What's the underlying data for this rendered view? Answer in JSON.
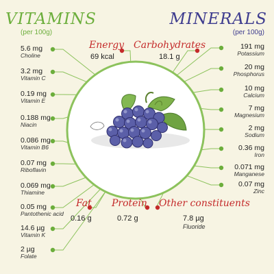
{
  "vitamins": {
    "title": "VITAMINS",
    "per": "(per 100g)",
    "items": [
      {
        "value": "5.6 mg",
        "name": "Choline"
      },
      {
        "value": "3.2 mg",
        "name": "Vitamin C"
      },
      {
        "value": "0.19 mg",
        "name": "Vitamin E"
      },
      {
        "value": "0.188 mg",
        "name": "Niacin"
      },
      {
        "value": "0.086 mg",
        "name": "Vitamin B6"
      },
      {
        "value": "0.07 mg",
        "name": "Riboflavin"
      },
      {
        "value": "0.069 mg",
        "name": "Thiamine"
      },
      {
        "value": "0.05 mg",
        "name": "Pantothenic acid"
      },
      {
        "value": "14.6 µg",
        "name": "Vitamin K"
      },
      {
        "value": "2 µg",
        "name": "Folate"
      }
    ]
  },
  "minerals": {
    "title": "MINERALS",
    "per": "(per 100g)",
    "items": [
      {
        "value": "191 mg",
        "name": "Potassium"
      },
      {
        "value": "20 mg",
        "name": "Phosphorus"
      },
      {
        "value": "10 mg",
        "name": "Calcium"
      },
      {
        "value": "7 mg",
        "name": "Magnesium"
      },
      {
        "value": "2 mg",
        "name": "Sodium"
      },
      {
        "value": "0.36 mg",
        "name": "Iron"
      },
      {
        "value": "0.071 mg",
        "name": "Manganese"
      },
      {
        "value": "0.07 mg",
        "name": "Zinc"
      }
    ]
  },
  "top": {
    "energy": {
      "title": "Energy",
      "value": "69 kcal"
    },
    "carbs": {
      "title": "Carbohydrates",
      "value": "18.1 g"
    }
  },
  "bottom": {
    "fat": {
      "title": "Fat",
      "value": "0.16 g"
    },
    "protein": {
      "title": "Protein",
      "value": "0.72 g"
    },
    "other": {
      "title": "Other constituents",
      "value": "7.8 µg",
      "name": "Fluoride"
    }
  },
  "colors": {
    "vitamins": "#6cae3c",
    "minerals": "#3d3b8e",
    "accent": "#c42a2a",
    "ring": "#8cc25c",
    "background": "#f7f4e3"
  }
}
